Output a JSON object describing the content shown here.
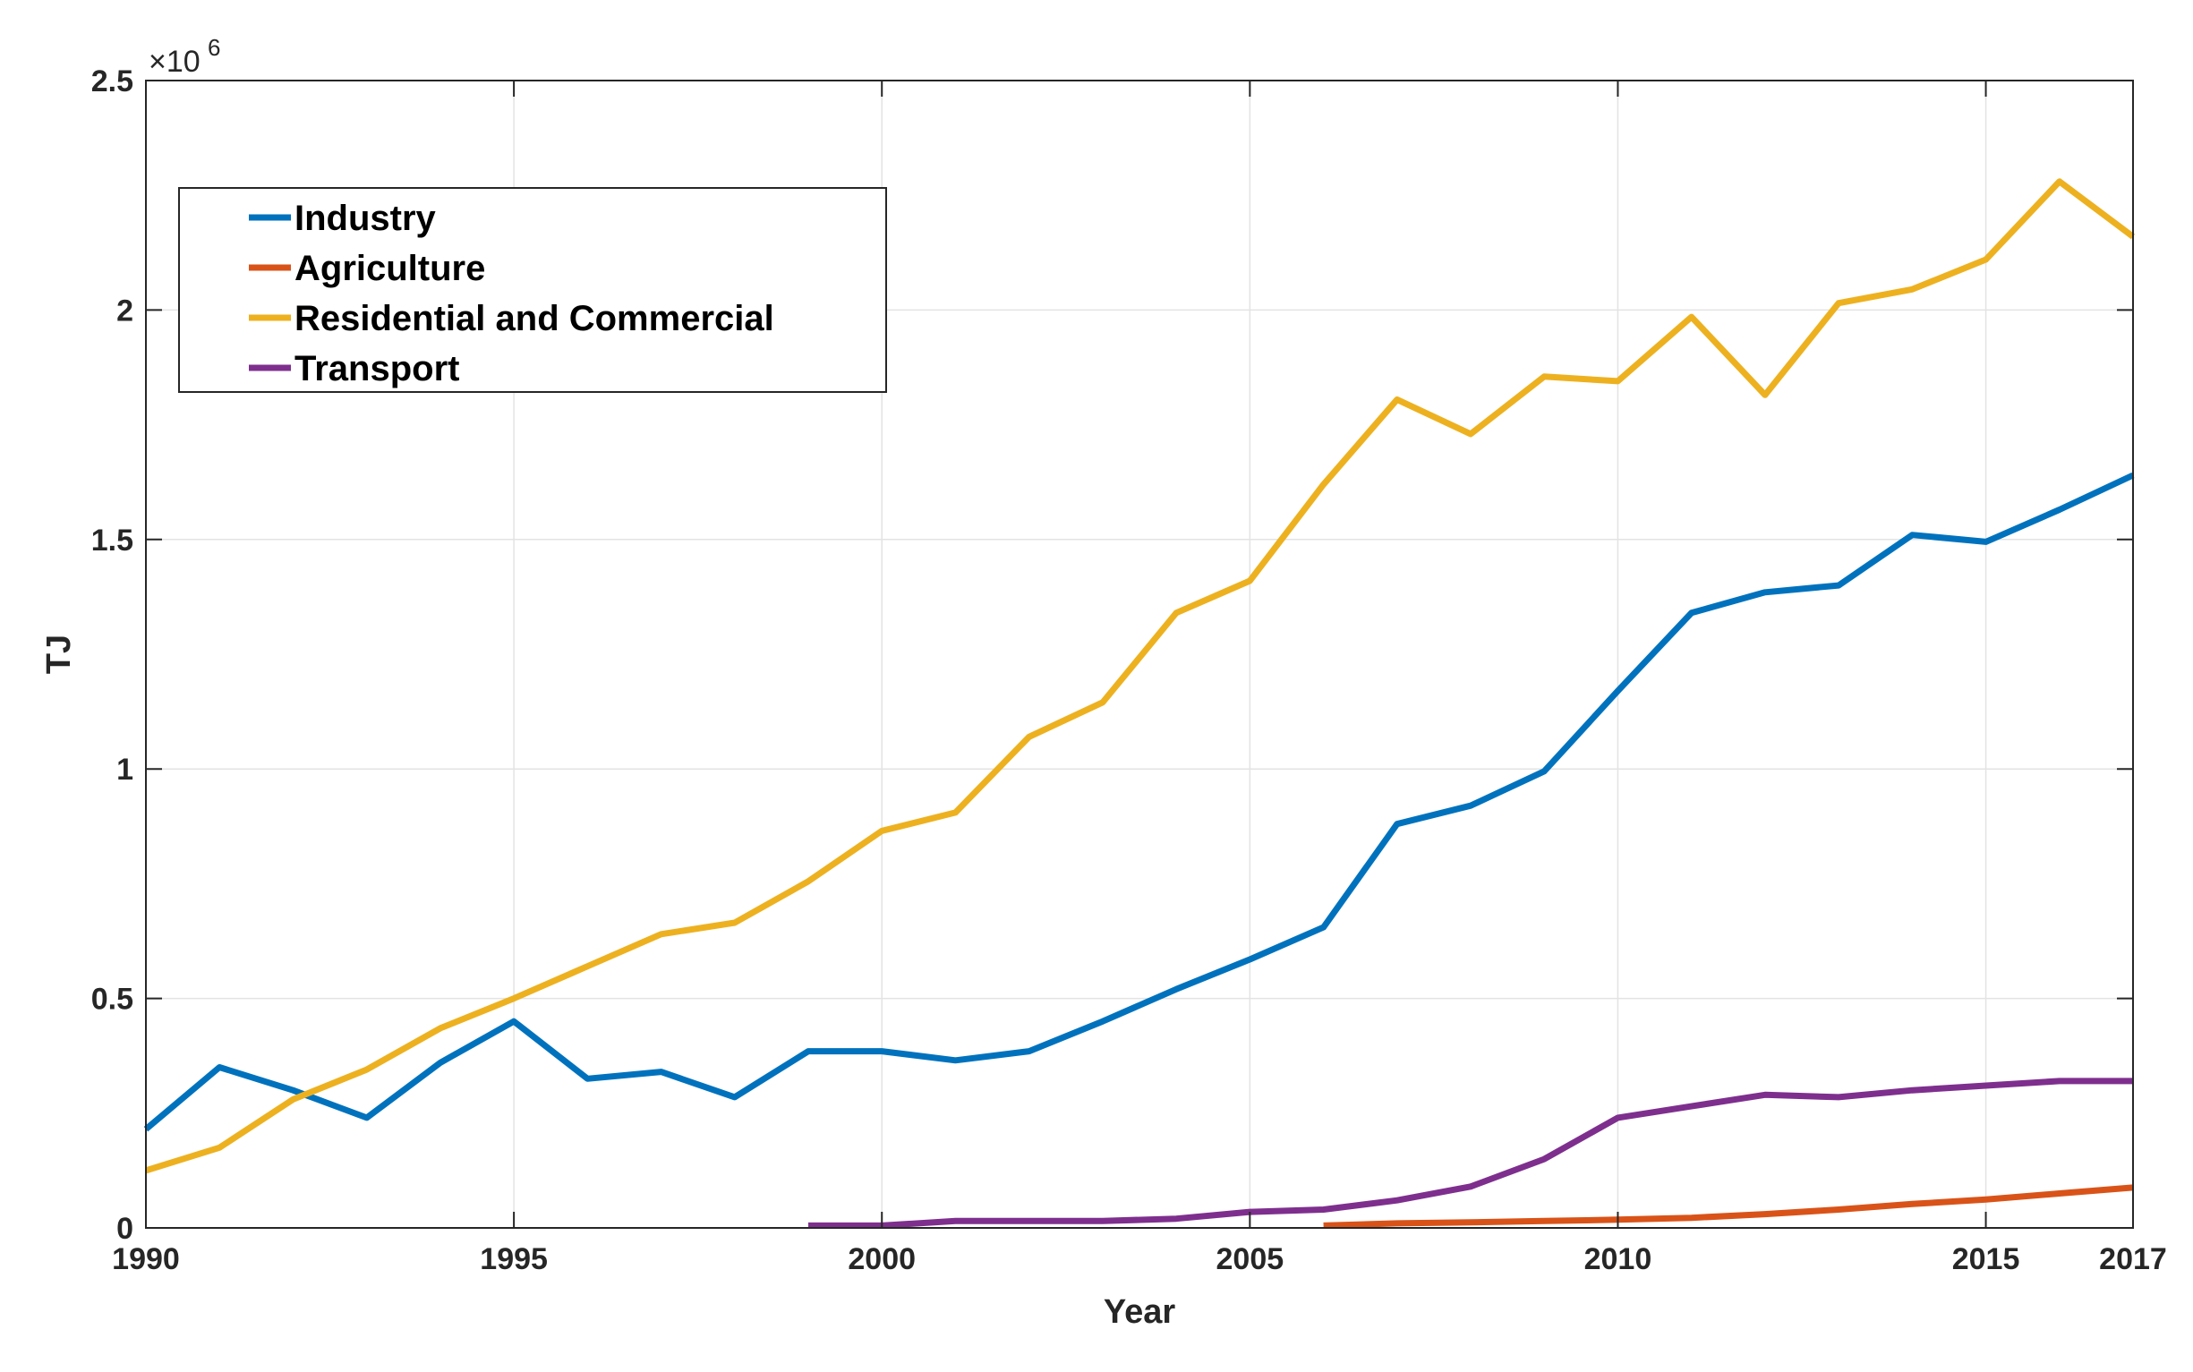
{
  "chart_data": {
    "type": "line",
    "title": "",
    "xlabel": "Year",
    "ylabel": "TJ",
    "xlim": [
      1990,
      2017
    ],
    "ylim": [
      0,
      2500000
    ],
    "x_ticks": [
      1990,
      1995,
      2000,
      2005,
      2010,
      2015,
      2017
    ],
    "x_tick_labels": [
      "1990",
      "1995",
      "2000",
      "2005",
      "2010",
      "2015",
      "2017"
    ],
    "y_ticks": [
      0,
      500000,
      1000000,
      1500000,
      2000000,
      2500000
    ],
    "y_tick_labels": [
      "0",
      "0.5",
      "1",
      "1.5",
      "2",
      "2.5"
    ],
    "y_exponent_label": "×10",
    "y_exponent_power": "6",
    "grid": true,
    "legend_position": "top-left",
    "series": [
      {
        "name": "Industry",
        "color": "#0072BD",
        "x": [
          1990,
          1991,
          1992,
          1993,
          1994,
          1995,
          1996,
          1997,
          1998,
          1999,
          2000,
          2001,
          2002,
          2003,
          2004,
          2005,
          2006,
          2007,
          2008,
          2009,
          2010,
          2011,
          2012,
          2013,
          2014,
          2015,
          2016,
          2017
        ],
        "values": [
          215000,
          350000,
          300000,
          240000,
          360000,
          450000,
          325000,
          340000,
          285000,
          385000,
          385000,
          365000,
          385000,
          450000,
          520000,
          585000,
          655000,
          880000,
          920000,
          995000,
          1170000,
          1340000,
          1385000,
          1400000,
          1510000,
          1495000,
          1565000,
          1640000
        ]
      },
      {
        "name": "Agriculture",
        "color": "#D95319",
        "x": [
          2006,
          2007,
          2008,
          2009,
          2010,
          2011,
          2012,
          2013,
          2014,
          2015,
          2016,
          2017
        ],
        "values": [
          5000,
          10000,
          12000,
          15000,
          18000,
          22000,
          30000,
          40000,
          52000,
          62000,
          75000,
          88000
        ]
      },
      {
        "name": "Residential and Commercial",
        "color": "#EDB120",
        "x": [
          1990,
          1991,
          1992,
          1993,
          1994,
          1995,
          1996,
          1997,
          1998,
          1999,
          2000,
          2001,
          2002,
          2003,
          2004,
          2005,
          2006,
          2007,
          2008,
          2009,
          2010,
          2011,
          2012,
          2013,
          2014,
          2015,
          2016,
          2017
        ],
        "values": [
          125000,
          175000,
          280000,
          345000,
          435000,
          500000,
          570000,
          640000,
          665000,
          755000,
          865000,
          905000,
          1070000,
          1145000,
          1340000,
          1410000,
          1620000,
          1805000,
          1730000,
          1855000,
          1845000,
          1985000,
          1815000,
          2015000,
          2045000,
          2110000,
          2280000,
          2160000
        ]
      },
      {
        "name": "Transport",
        "color": "#7E2F8E",
        "x": [
          1999,
          2000,
          2001,
          2002,
          2003,
          2004,
          2005,
          2006,
          2007,
          2008,
          2009,
          2010,
          2011,
          2012,
          2013,
          2014,
          2015,
          2016,
          2017
        ],
        "values": [
          5000,
          5000,
          15000,
          15000,
          15000,
          20000,
          35000,
          40000,
          60000,
          90000,
          150000,
          240000,
          265000,
          290000,
          285000,
          300000,
          310000,
          320000,
          320000
        ]
      }
    ]
  }
}
